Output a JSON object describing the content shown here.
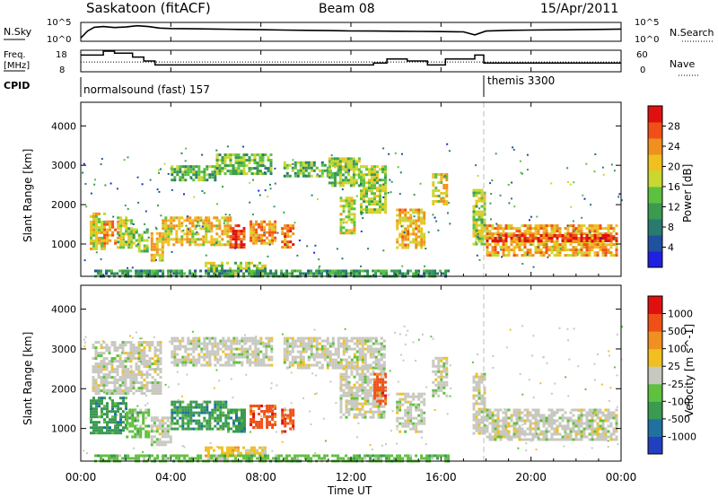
{
  "header": {
    "title": "Saskatoon (fitACF)",
    "beam": "Beam 08",
    "date": "15/Apr/2011"
  },
  "chart_data": [
    {
      "type": "line",
      "name": "noise-panel",
      "left_label": "N.Sky",
      "left_ticks": [
        "10^5",
        "10^0"
      ],
      "right_label": "N.Search",
      "right_ticks": [
        "10^5",
        "10^0"
      ],
      "x_range_hours": [
        0,
        24
      ],
      "sky_trace_hours": [
        0,
        0.3,
        0.6,
        1.0,
        1.5,
        2.0,
        2.5,
        3.0,
        3.5,
        4.0,
        5.0,
        6.0,
        7.0,
        8.0,
        9.0,
        10.0,
        11.0,
        12.0,
        13.0,
        14.0,
        15.0,
        16.0,
        17.0,
        17.5,
        18.0,
        19.0,
        20.0,
        21.0,
        22.0,
        23.0,
        24.0
      ],
      "sky_trace_level": [
        0.1,
        0.55,
        0.8,
        0.85,
        0.78,
        0.82,
        0.9,
        0.85,
        0.75,
        0.72,
        0.7,
        0.68,
        0.66,
        0.64,
        0.62,
        0.6,
        0.58,
        0.56,
        0.55,
        0.54,
        0.53,
        0.52,
        0.5,
        0.3,
        0.55,
        0.6,
        0.62,
        0.63,
        0.64,
        0.66,
        0.68
      ]
    },
    {
      "type": "line",
      "name": "frequency-panel",
      "left_label": "Freq.",
      "left_unit": "[MHz]",
      "left_ticks": [
        "18",
        "8"
      ],
      "right_label": "Nave",
      "right_ticks": [
        "60",
        "0"
      ],
      "freq_steps_hours": [
        0,
        1.0,
        1.5,
        2.3,
        2.8,
        3.3,
        13.0,
        13.6,
        14.5,
        15.4,
        16.2,
        17.5,
        17.9,
        24.0
      ],
      "freq_steps_mhz": [
        16,
        18,
        17,
        15,
        13,
        11,
        12,
        14,
        13,
        11,
        14,
        16,
        12,
        12
      ],
      "nave_level": 0.45
    },
    {
      "type": "heatmap",
      "name": "power-panel",
      "ylabel": "Slant Range [km]",
      "yticks": [
        "4000",
        "3000",
        "2000",
        "1000"
      ],
      "yrange_km": [
        180,
        4600
      ],
      "colorbar_label": "Power [dB]",
      "colorbar_ticks": [
        "28",
        "24",
        "20",
        "16",
        "12",
        "8",
        "4"
      ],
      "colorbar_colors": [
        "#2020e0",
        "#2050a0",
        "#2a7a70",
        "#3a9a50",
        "#5cc040",
        "#c8d830",
        "#f0c020",
        "#f09020",
        "#f05018",
        "#e01010"
      ],
      "bands": [
        {
          "h0": 0.4,
          "h1": 1.0,
          "r0": 900,
          "r1": 1800,
          "v": 18
        },
        {
          "h0": 1.0,
          "h1": 1.6,
          "r0": 1000,
          "r1": 1600,
          "v": 22
        },
        {
          "h0": 1.6,
          "h1": 2.3,
          "r0": 900,
          "r1": 1700,
          "v": 16
        },
        {
          "h0": 2.3,
          "h1": 3.0,
          "r0": 800,
          "r1": 1400,
          "v": 14
        },
        {
          "h0": 3.1,
          "h1": 3.6,
          "r0": 600,
          "r1": 1300,
          "v": 20
        },
        {
          "h0": 3.6,
          "h1": 6.6,
          "r0": 1000,
          "r1": 1700,
          "v": 19
        },
        {
          "h0": 6.6,
          "h1": 7.3,
          "r0": 900,
          "r1": 1500,
          "v": 27
        },
        {
          "h0": 7.5,
          "h1": 8.6,
          "r0": 1000,
          "r1": 1600,
          "v": 22
        },
        {
          "h0": 8.9,
          "h1": 9.4,
          "r0": 900,
          "r1": 1500,
          "v": 24
        },
        {
          "h0": 5.5,
          "h1": 8.2,
          "r0": 250,
          "r1": 550,
          "v": 15
        },
        {
          "h0": 4.0,
          "h1": 6.0,
          "r0": 2600,
          "r1": 3000,
          "v": 12
        },
        {
          "h0": 6.0,
          "h1": 8.5,
          "r0": 2800,
          "r1": 3300,
          "v": 13
        },
        {
          "h0": 9.0,
          "h1": 11.5,
          "r0": 2700,
          "r1": 3100,
          "v": 12
        },
        {
          "h0": 11.0,
          "h1": 12.4,
          "r0": 2500,
          "r1": 3200,
          "v": 14
        },
        {
          "h0": 12.4,
          "h1": 13.5,
          "r0": 1800,
          "r1": 3000,
          "v": 16
        },
        {
          "h0": 11.5,
          "h1": 12.2,
          "r0": 1300,
          "r1": 2200,
          "v": 17
        },
        {
          "h0": 14.0,
          "h1": 15.2,
          "r0": 900,
          "r1": 1900,
          "v": 20
        },
        {
          "h0": 15.6,
          "h1": 16.2,
          "r0": 2000,
          "r1": 2800,
          "v": 18
        },
        {
          "h0": 17.4,
          "h1": 17.9,
          "r0": 1000,
          "r1": 2400,
          "v": 16
        },
        {
          "h0": 18.0,
          "h1": 23.8,
          "r0": 700,
          "r1": 1500,
          "v": 21
        },
        {
          "h0": 18.0,
          "h1": 23.8,
          "r0": 1050,
          "r1": 1250,
          "v": 27
        },
        {
          "h0": 0.6,
          "h1": 16.3,
          "r0": 180,
          "r1": 350,
          "v": 10
        }
      ],
      "vmin": 0,
      "vmax": 30
    },
    {
      "type": "heatmap",
      "name": "velocity-panel",
      "ylabel": "Slant Range [km]",
      "yticks": [
        "4000",
        "3000",
        "2000",
        "1000"
      ],
      "yrange_km": [
        180,
        4600
      ],
      "colorbar_label": "Velocity [m s^-1]",
      "colorbar_ticks": [
        "1000",
        "500",
        "100",
        "25",
        "-25",
        "-100",
        "-500",
        "-1000"
      ],
      "colorbar_colors": [
        "#2040c0",
        "#2070a0",
        "#3a9a50",
        "#60c040",
        "#c8c8c0",
        "#f0c020",
        "#f09020",
        "#f05018",
        "#e01010"
      ],
      "bands": [
        {
          "h0": 0.4,
          "h1": 2.0,
          "r0": 900,
          "r1": 1800,
          "c": 2
        },
        {
          "h0": 2.0,
          "h1": 3.0,
          "r0": 800,
          "r1": 1500,
          "c": 3
        },
        {
          "h0": 3.1,
          "h1": 4.0,
          "r0": 600,
          "r1": 1300,
          "c": 4
        },
        {
          "h0": 4.0,
          "h1": 6.5,
          "r0": 1000,
          "r1": 1700,
          "c": 2
        },
        {
          "h0": 6.5,
          "h1": 7.3,
          "r0": 900,
          "r1": 1500,
          "c": 2
        },
        {
          "h0": 7.5,
          "h1": 8.6,
          "r0": 1000,
          "r1": 1600,
          "c": 7
        },
        {
          "h0": 8.9,
          "h1": 9.4,
          "r0": 900,
          "r1": 1500,
          "c": 7
        },
        {
          "h0": 5.5,
          "h1": 8.2,
          "r0": 300,
          "r1": 550,
          "c": 5
        },
        {
          "h0": 0.5,
          "h1": 3.5,
          "r0": 1900,
          "r1": 3200,
          "c": 4
        },
        {
          "h0": 4.0,
          "h1": 8.5,
          "r0": 2600,
          "r1": 3300,
          "c": 4
        },
        {
          "h0": 9.0,
          "h1": 13.5,
          "r0": 2500,
          "r1": 3300,
          "c": 4
        },
        {
          "h0": 11.5,
          "h1": 13.5,
          "r0": 1300,
          "r1": 2600,
          "c": 4
        },
        {
          "h0": 13.0,
          "h1": 13.5,
          "r0": 1600,
          "r1": 2400,
          "c": 7
        },
        {
          "h0": 14.0,
          "h1": 15.2,
          "r0": 900,
          "r1": 1900,
          "c": 4
        },
        {
          "h0": 15.6,
          "h1": 16.2,
          "r0": 1800,
          "r1": 2800,
          "c": 4
        },
        {
          "h0": 17.4,
          "h1": 17.9,
          "r0": 900,
          "r1": 2400,
          "c": 4
        },
        {
          "h0": 18.0,
          "h1": 23.8,
          "r0": 700,
          "r1": 1500,
          "c": 4
        },
        {
          "h0": 0.6,
          "h1": 16.3,
          "r0": 180,
          "r1": 350,
          "c": 3
        }
      ]
    }
  ],
  "cpid": {
    "label": "CPID",
    "modes": [
      {
        "name": "normalsound (fast) 157",
        "start_hour": 0
      },
      {
        "name": "themis 3300",
        "start_hour": 17.9
      }
    ]
  },
  "time_axis": {
    "label": "Time UT",
    "ticks": [
      "00:00",
      "04:00",
      "08:00",
      "12:00",
      "16:00",
      "20:00",
      "00:00"
    ],
    "tick_hours": [
      0,
      4,
      8,
      12,
      16,
      20,
      24
    ]
  }
}
